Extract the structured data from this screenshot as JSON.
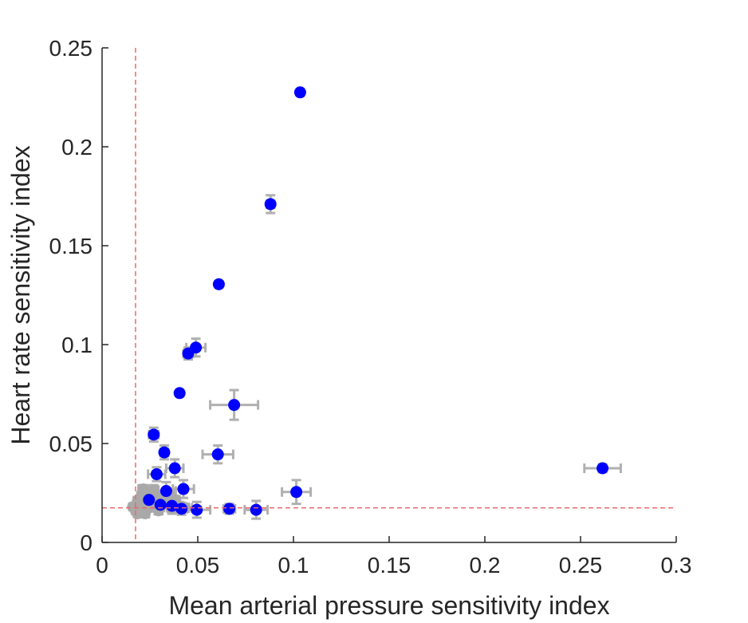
{
  "chart_data": {
    "type": "scatter",
    "title": "",
    "xlabel": "Mean arterial pressure sensitivity index",
    "ylabel": "Heart rate sensitivity index",
    "xlim": [
      0,
      0.3
    ],
    "ylim": [
      0,
      0.25
    ],
    "xticks": [
      0,
      0.05,
      0.1,
      0.15,
      0.2,
      0.25,
      0.3
    ],
    "yticks": [
      0,
      0.05,
      0.1,
      0.15,
      0.2,
      0.25
    ],
    "xtick_labels": [
      "0",
      "0.05",
      "0.1",
      "0.15",
      "0.2",
      "0.25",
      "0.3"
    ],
    "ytick_labels": [
      "0",
      "0.05",
      "0.1",
      "0.15",
      "0.2",
      "0.25"
    ],
    "grid": false,
    "threshold_lines": {
      "x": 0.0175,
      "y": 0.0175,
      "style": "dashed",
      "color": "#e8696b"
    },
    "colors": {
      "significant": "#0000ff",
      "nonsignificant": "#a9a9a9",
      "errorbar": "#b0b0b0"
    },
    "significant_points": [
      {
        "x": 0.1035,
        "y": 0.2275,
        "xerr": 0.0015,
        "yerr": 0.0015
      },
      {
        "x": 0.088,
        "y": 0.171,
        "xerr": 0.002,
        "yerr": 0.0045
      },
      {
        "x": 0.061,
        "y": 0.1305,
        "xerr": 0.0015,
        "yerr": 0.0015
      },
      {
        "x": 0.049,
        "y": 0.0985,
        "xerr": 0.005,
        "yerr": 0.0045
      },
      {
        "x": 0.045,
        "y": 0.0955,
        "xerr": 0.0025,
        "yerr": 0.003
      },
      {
        "x": 0.0405,
        "y": 0.0755,
        "xerr": 0.0015,
        "yerr": 0.0015
      },
      {
        "x": 0.069,
        "y": 0.0695,
        "xerr": 0.0125,
        "yerr": 0.0075
      },
      {
        "x": 0.027,
        "y": 0.0545,
        "xerr": 0.0025,
        "yerr": 0.0035
      },
      {
        "x": 0.0325,
        "y": 0.0455,
        "xerr": 0.002,
        "yerr": 0.0035
      },
      {
        "x": 0.0605,
        "y": 0.0445,
        "xerr": 0.008,
        "yerr": 0.0045
      },
      {
        "x": 0.038,
        "y": 0.0375,
        "xerr": 0.0045,
        "yerr": 0.0045
      },
      {
        "x": 0.2615,
        "y": 0.0375,
        "xerr": 0.0095,
        "yerr": 0.002
      },
      {
        "x": 0.0285,
        "y": 0.0345,
        "xerr": 0.0045,
        "yerr": 0.0035
      },
      {
        "x": 0.0425,
        "y": 0.027,
        "xerr": 0.0055,
        "yerr": 0.0045
      },
      {
        "x": 0.0335,
        "y": 0.026,
        "xerr": 0.005,
        "yerr": 0.0045
      },
      {
        "x": 0.1015,
        "y": 0.0255,
        "xerr": 0.0075,
        "yerr": 0.006
      },
      {
        "x": 0.0245,
        "y": 0.0215,
        "xerr": 0.0035,
        "yerr": 0.003
      },
      {
        "x": 0.0305,
        "y": 0.019,
        "xerr": 0.0035,
        "yerr": 0.003
      },
      {
        "x": 0.0365,
        "y": 0.0185,
        "xerr": 0.004,
        "yerr": 0.004
      },
      {
        "x": 0.0415,
        "y": 0.017,
        "xerr": 0.003,
        "yerr": 0.003
      },
      {
        "x": 0.0495,
        "y": 0.0165,
        "xerr": 0.007,
        "yerr": 0.004
      },
      {
        "x": 0.0665,
        "y": 0.017,
        "xerr": 0.003,
        "yerr": 0.0025
      },
      {
        "x": 0.0805,
        "y": 0.0165,
        "xerr": 0.006,
        "yerr": 0.0045
      }
    ],
    "nonsignificant_points": [
      {
        "x": 0.016,
        "y": 0.018,
        "xerr": 0.0015,
        "yerr": 0.0015
      },
      {
        "x": 0.0175,
        "y": 0.016,
        "xerr": 0.0015,
        "yerr": 0.0015
      },
      {
        "x": 0.0185,
        "y": 0.021,
        "xerr": 0.002,
        "yerr": 0.002
      },
      {
        "x": 0.0195,
        "y": 0.0175,
        "xerr": 0.0015,
        "yerr": 0.002
      },
      {
        "x": 0.0205,
        "y": 0.0235,
        "xerr": 0.002,
        "yerr": 0.002
      },
      {
        "x": 0.021,
        "y": 0.0155,
        "xerr": 0.002,
        "yerr": 0.0015
      },
      {
        "x": 0.022,
        "y": 0.0195,
        "xerr": 0.002,
        "yerr": 0.002
      },
      {
        "x": 0.023,
        "y": 0.0255,
        "xerr": 0.002,
        "yerr": 0.0025
      },
      {
        "x": 0.024,
        "y": 0.0175,
        "xerr": 0.002,
        "yerr": 0.002
      },
      {
        "x": 0.0255,
        "y": 0.0225,
        "xerr": 0.0025,
        "yerr": 0.002
      },
      {
        "x": 0.027,
        "y": 0.0265,
        "xerr": 0.0025,
        "yerr": 0.0025
      },
      {
        "x": 0.0285,
        "y": 0.0205,
        "xerr": 0.002,
        "yerr": 0.002
      },
      {
        "x": 0.0295,
        "y": 0.016,
        "xerr": 0.002,
        "yerr": 0.0015
      },
      {
        "x": 0.031,
        "y": 0.0235,
        "xerr": 0.0025,
        "yerr": 0.002
      },
      {
        "x": 0.033,
        "y": 0.0195,
        "xerr": 0.002,
        "yerr": 0.002
      },
      {
        "x": 0.035,
        "y": 0.0245,
        "xerr": 0.0025,
        "yerr": 0.0025
      },
      {
        "x": 0.0365,
        "y": 0.0175,
        "xerr": 0.0025,
        "yerr": 0.002
      },
      {
        "x": 0.0385,
        "y": 0.0215,
        "xerr": 0.002,
        "yerr": 0.002
      },
      {
        "x": 0.04,
        "y": 0.0185,
        "xerr": 0.0025,
        "yerr": 0.002
      },
      {
        "x": 0.0435,
        "y": 0.0175,
        "xerr": 0.0035,
        "yerr": 0.002
      },
      {
        "x": 0.0185,
        "y": 0.0145,
        "xerr": 0.0015,
        "yerr": 0.0015
      },
      {
        "x": 0.0225,
        "y": 0.0145,
        "xerr": 0.002,
        "yerr": 0.0015
      },
      {
        "x": 0.0265,
        "y": 0.0185,
        "xerr": 0.002,
        "yerr": 0.002
      },
      {
        "x": 0.0215,
        "y": 0.027,
        "xerr": 0.0025,
        "yerr": 0.002
      }
    ]
  }
}
